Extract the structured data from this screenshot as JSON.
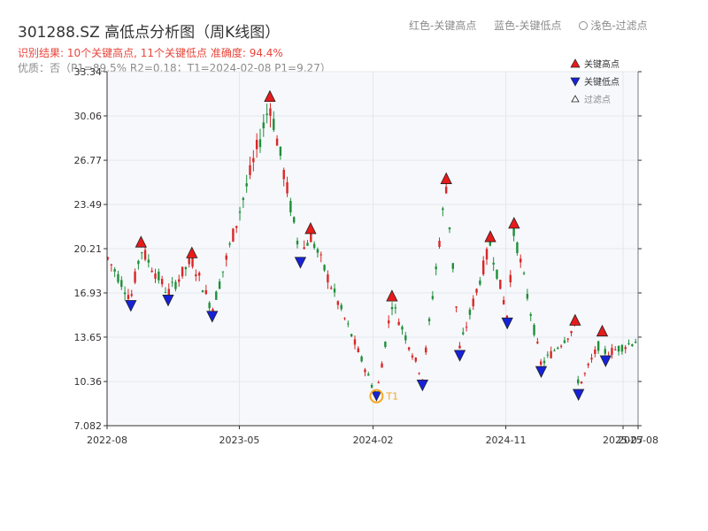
{
  "header": {
    "title": "301288.SZ 高低点分析图（周K线图）",
    "legend_red": "红色-关键高点",
    "legend_blue": "蓝色-关键低点",
    "legend_light": "浅色-过滤点",
    "result_line": "识别结果: 10个关键高点, 11个关键低点  准确度: 94.4%",
    "quality_line": "优质：否（P1=89.5%  R2=0.18；T1=2024-02-08 P1=9.27）"
  },
  "colors": {
    "up": "#d92727",
    "down": "#1e8f3a",
    "high_marker": "#e81b1b",
    "low_marker": "#1622d9",
    "t1_marker": "#f5a623",
    "grid": "#e4e7ec",
    "plot_bg": "#f6f8fb"
  },
  "chart_data": {
    "type": "candlestick",
    "title": "",
    "ylim": [
      7.082,
      33.34
    ],
    "y_ticks": [
      "7.082",
      "10.36",
      "13.65",
      "16.93",
      "20.21",
      "23.49",
      "26.77",
      "30.06",
      "33.34"
    ],
    "x_range": [
      "2022-08-01",
      "2025-08-01"
    ],
    "x_ticks": [
      {
        "date": "2022-08-01",
        "label": "2022-08"
      },
      {
        "date": "2023-05-01",
        "label": "2023-05"
      },
      {
        "date": "2024-02-01",
        "label": "2024-02"
      },
      {
        "date": "2024-11-01",
        "label": "2024-11"
      },
      {
        "date": "2025-07-01",
        "label": "2025-07"
      },
      {
        "date": "2025-08-01",
        "label": "2025-08"
      }
    ],
    "key_highs": [
      {
        "date": "2022-10-10",
        "value": 20.2
      },
      {
        "date": "2023-01-23",
        "value": 19.4
      },
      {
        "date": "2023-07-03",
        "value": 31.0
      },
      {
        "date": "2023-09-25",
        "value": 21.2
      },
      {
        "date": "2024-03-11",
        "value": 16.2
      },
      {
        "date": "2024-07-01",
        "value": 24.9
      },
      {
        "date": "2024-09-30",
        "value": 20.6
      },
      {
        "date": "2024-11-18",
        "value": 21.6
      },
      {
        "date": "2025-03-24",
        "value": 14.4
      },
      {
        "date": "2025-05-19",
        "value": 13.6
      }
    ],
    "key_lows": [
      {
        "date": "2022-09-19",
        "value": 16.5
      },
      {
        "date": "2022-12-05",
        "value": 16.9
      },
      {
        "date": "2023-03-06",
        "value": 15.7
      },
      {
        "date": "2023-09-04",
        "value": 19.7
      },
      {
        "date": "2024-05-13",
        "value": 10.6
      },
      {
        "date": "2024-07-29",
        "value": 12.8
      },
      {
        "date": "2024-11-04",
        "value": 15.2
      },
      {
        "date": "2025-01-13",
        "value": 11.6
      },
      {
        "date": "2025-03-31",
        "value": 9.9
      },
      {
        "date": "2025-05-26",
        "value": 12.4
      }
    ],
    "t1": {
      "date": "2024-02-08",
      "value": 9.27,
      "label": "T1"
    },
    "legend": [
      {
        "label": "关键高点",
        "marker": "triangle-up-red"
      },
      {
        "label": "关键低点",
        "marker": "triangle-down-blue"
      },
      {
        "label": "过滤点",
        "marker": "triangle-up-hollow"
      }
    ]
  }
}
